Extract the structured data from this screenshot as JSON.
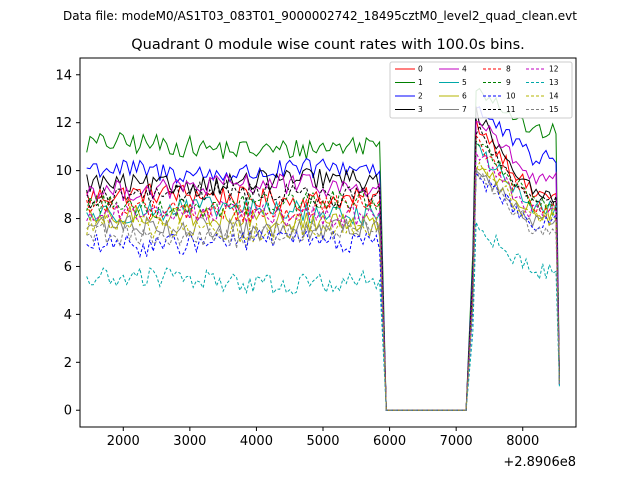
{
  "chart_data": {
    "type": "line",
    "suptitle": "Data file: modeM0/AS1T03_083T01_9000002742_18495cztM0_level2_quad_clean.evt",
    "title": "Quadrant 0 module wise count rates with 100.0s bins.",
    "xlabel": "",
    "ylabel": "",
    "x_offset_label": "+2.8906e8",
    "xlim": [
      1350,
      8800
    ],
    "ylim": [
      -0.7,
      14.7
    ],
    "xticks": [
      2000,
      3000,
      4000,
      5000,
      6000,
      7000,
      8000
    ],
    "yticks": [
      0,
      2,
      4,
      6,
      8,
      10,
      12,
      14
    ],
    "grid": false,
    "legend_position": "top-right",
    "legend_columns": 4,
    "segments": [
      {
        "start": 1450,
        "end": 5850
      },
      {
        "start": 5950,
        "end": 5950,
        "zero": true
      },
      {
        "start": 6050,
        "end": 7150,
        "zero": true
      },
      {
        "start": 7250,
        "end": 8550
      }
    ],
    "series": [
      {
        "name": "0",
        "color": "#ff0000",
        "dash": false,
        "base": 8.9,
        "peak": 12.0,
        "end": 9.0,
        "final": 1.2
      },
      {
        "name": "1",
        "color": "#008000",
        "dash": false,
        "base": 11.0,
        "peak": 13.6,
        "end": 11.6,
        "final": 1.5
      },
      {
        "name": "2",
        "color": "#0000ff",
        "dash": false,
        "base": 10.0,
        "peak": 12.6,
        "end": 10.5,
        "final": 1.3
      },
      {
        "name": "3",
        "color": "#000000",
        "dash": false,
        "base": 9.5,
        "peak": 12.4,
        "end": 9.0,
        "final": 1.4
      },
      {
        "name": "4",
        "color": "#c000c0",
        "dash": false,
        "base": 9.3,
        "peak": 12.2,
        "end": 9.6,
        "final": 1.3
      },
      {
        "name": "5",
        "color": "#00a8a8",
        "dash": false,
        "base": 8.3,
        "peak": 11.0,
        "end": 8.4,
        "final": 1.1
      },
      {
        "name": "6",
        "color": "#b5b500",
        "dash": false,
        "base": 8.0,
        "peak": 10.4,
        "end": 8.3,
        "final": 1.2
      },
      {
        "name": "7",
        "color": "#808080",
        "dash": false,
        "base": 7.6,
        "peak": 10.0,
        "end": 8.0,
        "final": 1.1
      },
      {
        "name": "8",
        "color": "#ff0000",
        "dash": true,
        "base": 8.4,
        "peak": 11.2,
        "end": 8.5,
        "final": 1.1
      },
      {
        "name": "9",
        "color": "#008000",
        "dash": true,
        "base": 8.6,
        "peak": 11.4,
        "end": 8.7,
        "final": 1.2
      },
      {
        "name": "10",
        "color": "#0000ff",
        "dash": true,
        "base": 7.0,
        "peak": 9.8,
        "end": 7.8,
        "final": 1.0
      },
      {
        "name": "11",
        "color": "#000000",
        "dash": true,
        "base": 9.0,
        "peak": 11.8,
        "end": 8.7,
        "final": 1.3
      },
      {
        "name": "12",
        "color": "#c000c0",
        "dash": true,
        "base": 8.2,
        "peak": 10.8,
        "end": 8.2,
        "final": 1.1
      },
      {
        "name": "13",
        "color": "#00a8a8",
        "dash": true,
        "base": 5.4,
        "peak": 7.6,
        "end": 5.8,
        "final": 1.0
      },
      {
        "name": "14",
        "color": "#b5b500",
        "dash": true,
        "base": 7.6,
        "peak": 10.2,
        "end": 8.0,
        "final": 1.1
      },
      {
        "name": "15",
        "color": "#808080",
        "dash": true,
        "base": 7.3,
        "peak": 10.0,
        "end": 7.6,
        "final": 1.1
      }
    ]
  }
}
